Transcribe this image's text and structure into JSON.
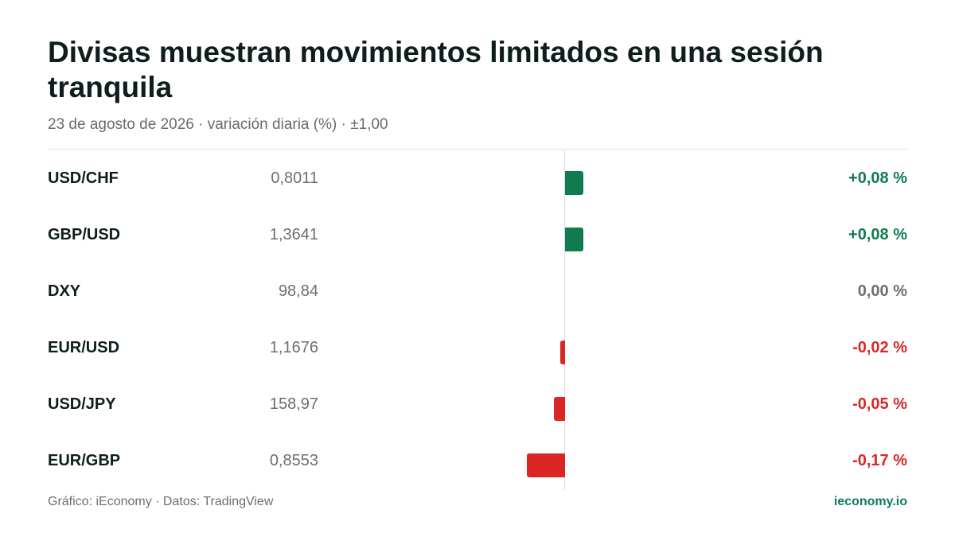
{
  "header": {
    "title": "Divisas muestran movimientos limitados en una sesión tranquila",
    "subtitle": "23 de agosto de 2026 · variación diaria (%) · ±1,00"
  },
  "footer": {
    "source": "Gráfico: iEconomy · Datos: TradingView",
    "brand": "ieconomy.io"
  },
  "colors": {
    "positive": "#0f7b4f",
    "negative": "#dc2626",
    "neutral": "#6a706f"
  },
  "chart_data": {
    "type": "bar",
    "orientation": "horizontal",
    "categories": [
      "USD/CHF",
      "GBP/USD",
      "DXY",
      "EUR/USD",
      "USD/JPY",
      "EUR/GBP"
    ],
    "prices": [
      "0,8011",
      "1,3641",
      "98,84",
      "1,1676",
      "158,97",
      "0,8553"
    ],
    "values": [
      0.08,
      0.08,
      0.0,
      -0.02,
      -0.05,
      -0.17
    ],
    "value_labels": [
      "+0,08 %",
      "+0,08 %",
      "0,00 %",
      "-0,02 %",
      "-0,05 %",
      "-0,17 %"
    ],
    "xlim": [
      -1,
      1
    ],
    "grid": false
  }
}
